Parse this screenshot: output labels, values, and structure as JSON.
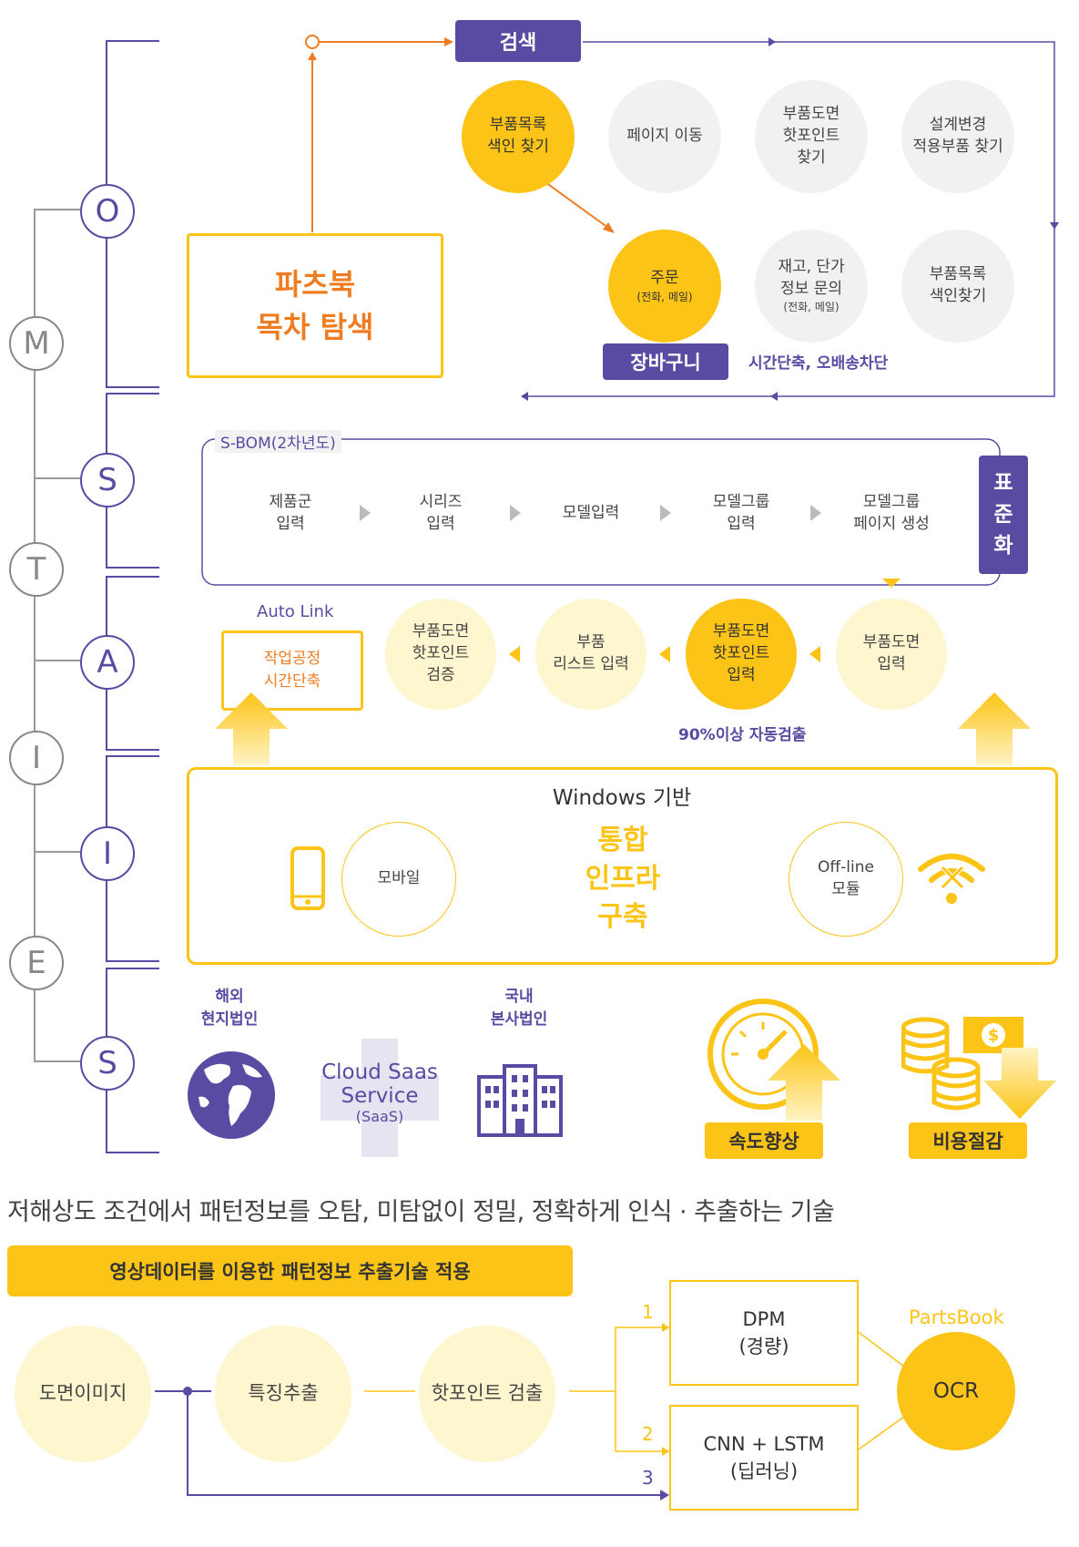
{
  "letters": {
    "o": "O",
    "m": "M",
    "s1": "S",
    "t": "T",
    "a": "A",
    "i1": "I",
    "i2": "I",
    "e": "E",
    "s2": "S"
  },
  "search": {
    "label": "검색",
    "items": {
      "parts_list": [
        "부품목록",
        "색인 찾기"
      ],
      "page_move": "페이지 이동",
      "hotpoint": [
        "부품도면",
        "핫포인트",
        "찾기"
      ],
      "design_change": [
        "설계변경",
        "적용부품 찾기"
      ],
      "order": "주문",
      "order_sub": "(전화, 메일)",
      "inventory": [
        "재고, 단가",
        "정보 문의"
      ],
      "inventory_sub": "(전화, 메일)",
      "parts_index": [
        "부품목록",
        "색인찾기"
      ]
    },
    "cart_label": "장바구니",
    "cart_note": "시간단축, 오배송차단"
  },
  "partsbook": {
    "line1": "파츠북",
    "line2": "목차 탐색"
  },
  "sbom": {
    "label": "S-BOM(2차년도)",
    "steps": [
      [
        "제품군",
        "입력"
      ],
      [
        "시리즈",
        "입력"
      ],
      [
        "모델입력"
      ],
      [
        "모델그룹",
        "입력"
      ],
      [
        "모델그룹",
        "페이지 생성"
      ]
    ],
    "standard": [
      "표",
      "준",
      "화"
    ]
  },
  "autolink": {
    "label": "Auto Link",
    "box": [
      "작업공정",
      "시간단축"
    ]
  },
  "parts_flow": [
    [
      "부품도면",
      "핫포인트",
      "검증"
    ],
    [
      "부품",
      "리스트 입력"
    ],
    [
      "부품도면",
      "핫포인트",
      "입력"
    ],
    [
      "부품도면",
      "입력"
    ]
  ],
  "auto_detect": "90%이상 자동검출",
  "infra": {
    "title": "Windows 기반",
    "center": [
      "통합",
      "인프라",
      "구축"
    ],
    "mobile": "모바일",
    "offline": [
      "Off-line",
      "모듈"
    ]
  },
  "service": {
    "overseas": [
      "해외",
      "현지법인"
    ],
    "domestic": [
      "국내",
      "본사법인"
    ],
    "cloud": [
      "Cloud Saas",
      "Service"
    ],
    "cloud_sub": "(SaaS)",
    "speed": "속도향상",
    "cost": "비용절감"
  },
  "tech": {
    "headline": "저해상도 조건에서 패턴정보를 오탐, 미탐없이 정밀, 정확하게 인식 · 추출하는 기술",
    "banner": "영상데이터를 이용한 패턴정보 추출기술 적용",
    "steps": [
      "도면이미지",
      "특징추출",
      "핫포인트 검출"
    ],
    "dpm": [
      "DPM",
      "(경량)"
    ],
    "cnn": [
      "CNN + LSTM",
      "(딥러닝)"
    ],
    "num1": "1",
    "num2": "2",
    "num3": "3",
    "partsbook": "PartsBook",
    "ocr": "OCR"
  },
  "colors": {
    "purple": "#5a4ba2",
    "yellow": "#fcc416",
    "orange": "#f07c22",
    "pale": "#fef6cf",
    "gray": "#f1f1f1"
  }
}
